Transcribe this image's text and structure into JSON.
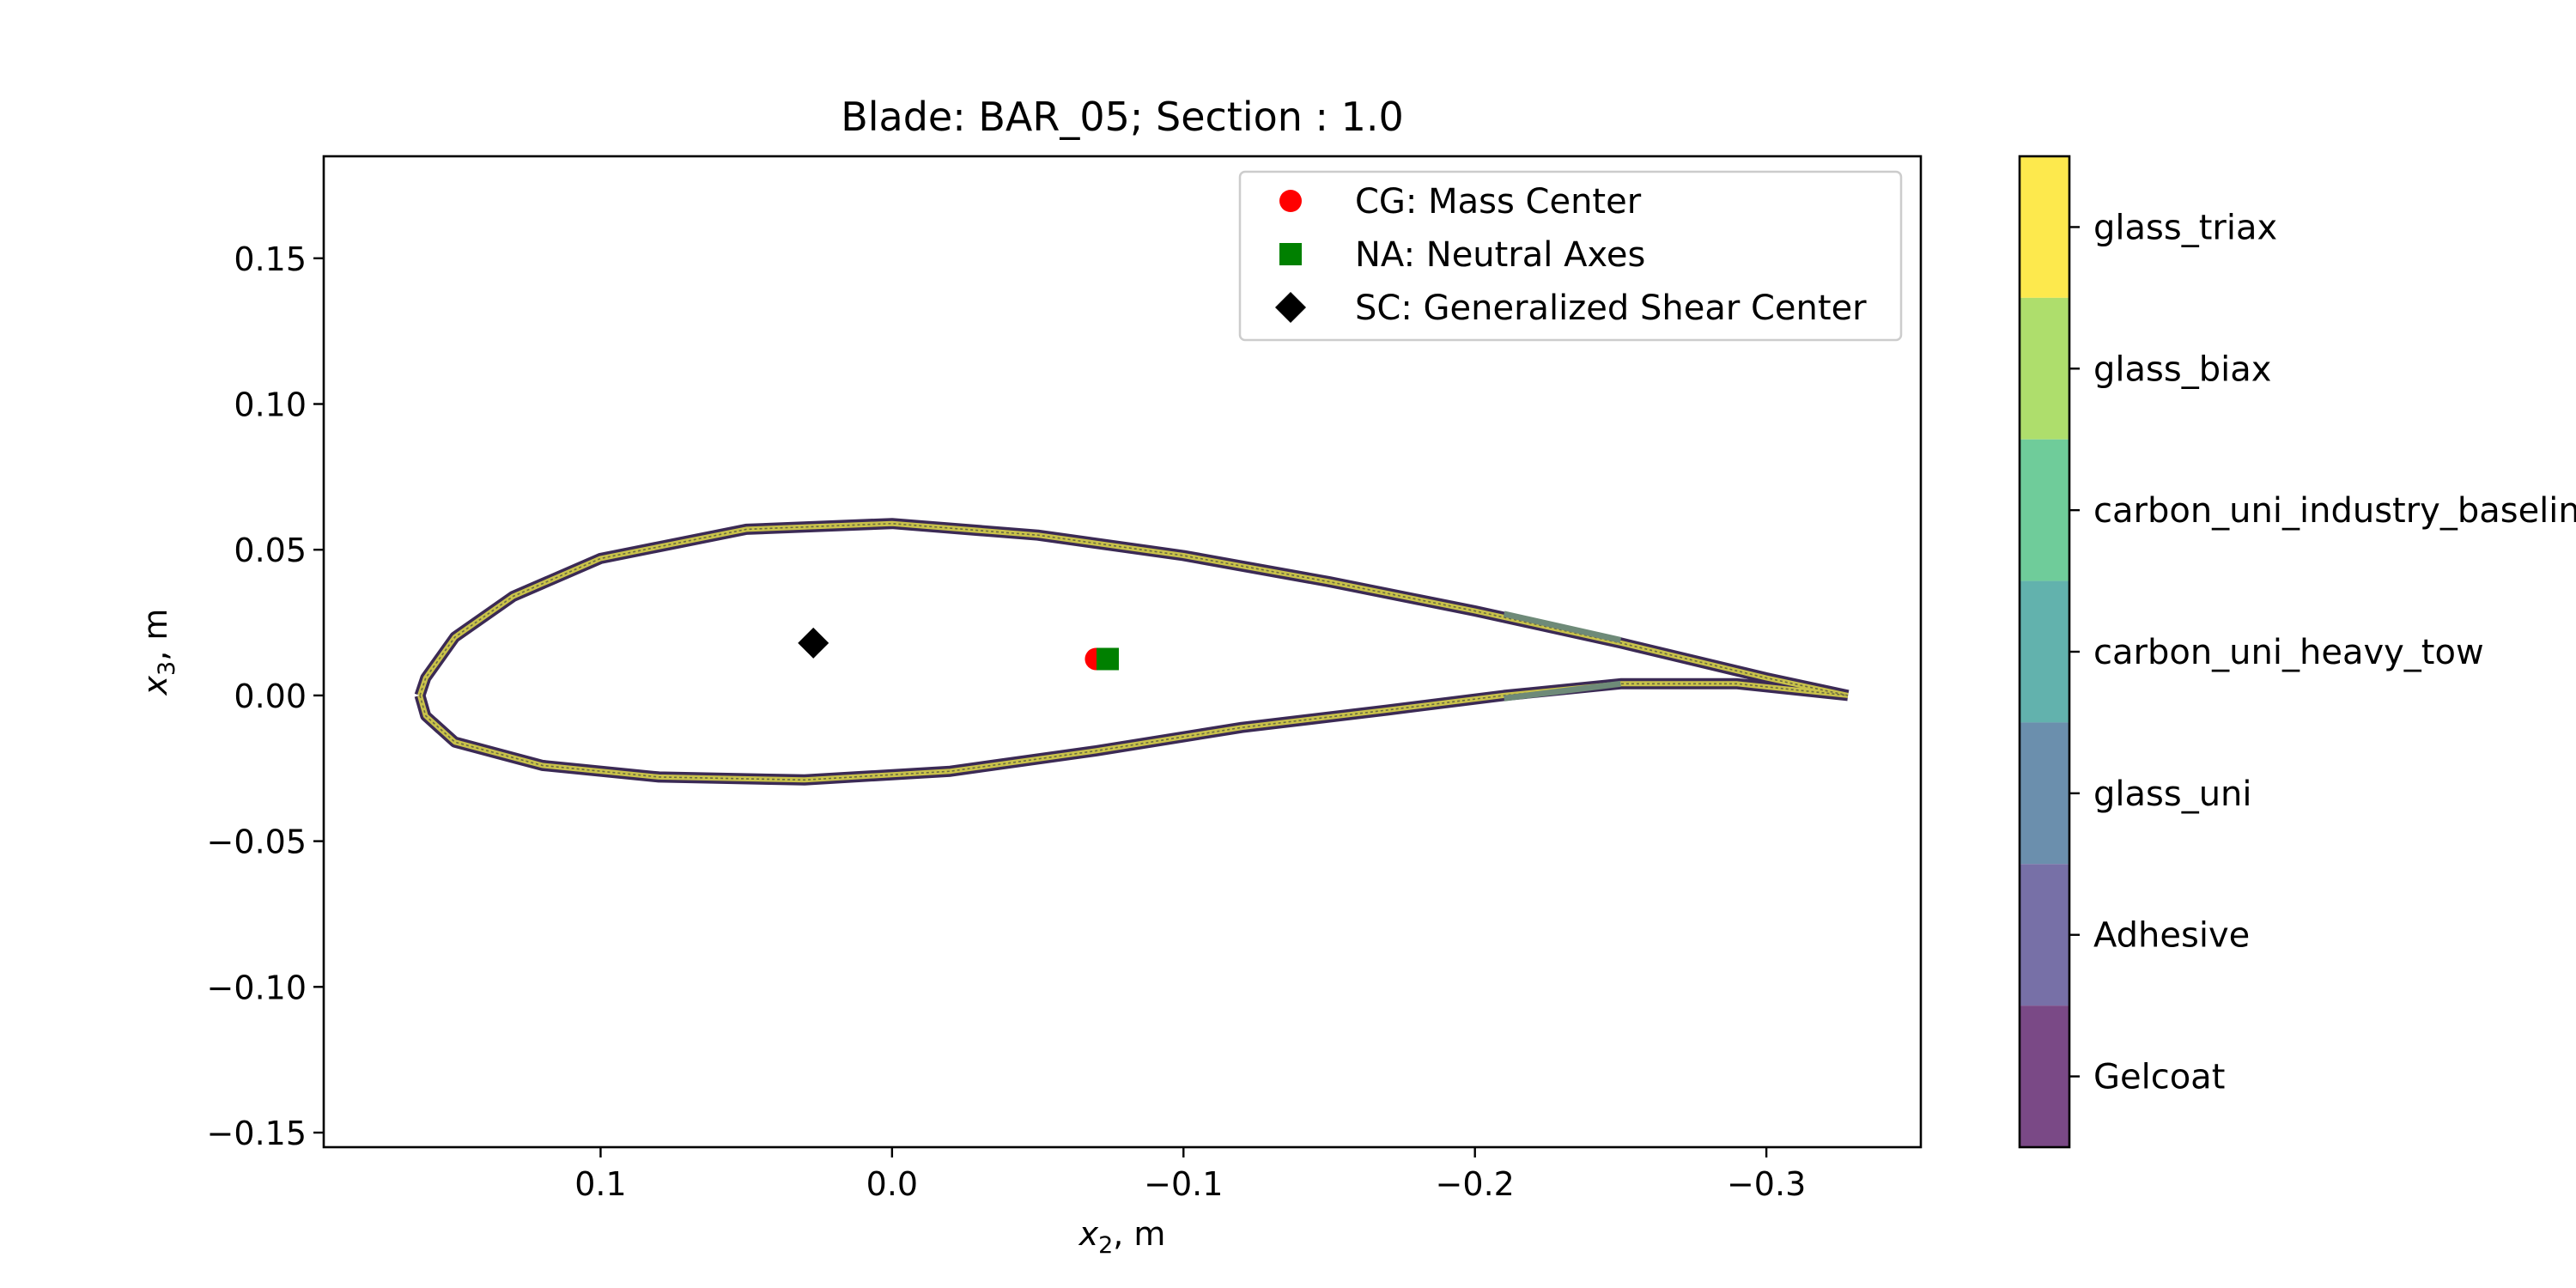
{
  "chart_data": {
    "type": "scatter",
    "title": "Blade: BAR_05; Section : 1.0",
    "xlabel": {
      "symbol": "x",
      "sub": "2",
      "unit": ", m"
    },
    "ylabel": {
      "symbol": "x",
      "sub": "3",
      "unit": ", m"
    },
    "xlim": [
      0.195,
      -0.353
    ],
    "ylim": [
      -0.155,
      0.185
    ],
    "x_ticks": [
      {
        "value": 0.1,
        "label": "0.1"
      },
      {
        "value": 0.0,
        "label": "0.0"
      },
      {
        "value": -0.1,
        "label": "−0.1"
      },
      {
        "value": -0.2,
        "label": "−0.2"
      },
      {
        "value": -0.3,
        "label": "−0.3"
      }
    ],
    "y_ticks": [
      {
        "value": 0.15,
        "label": "0.15"
      },
      {
        "value": 0.1,
        "label": "0.10"
      },
      {
        "value": 0.05,
        "label": "0.05"
      },
      {
        "value": 0.0,
        "label": "0.00"
      },
      {
        "value": -0.05,
        "label": "−0.05"
      },
      {
        "value": -0.1,
        "label": "−0.10"
      },
      {
        "value": -0.15,
        "label": "−0.15"
      }
    ],
    "points": [
      {
        "name": "CG: Mass Center",
        "marker": "circle",
        "color": "#ff0000",
        "x": -0.07,
        "y": 0.0125
      },
      {
        "name": "NA: Neutral Axes",
        "marker": "square",
        "color": "#008000",
        "x": -0.074,
        "y": 0.0125
      },
      {
        "name": "SC: Generalized Shear Center",
        "marker": "diamond",
        "color": "#000000",
        "x": 0.027,
        "y": 0.018
      }
    ],
    "legend_position": "top-right",
    "profile": {
      "upper_surface": [
        [
          -0.328,
          0.0
        ],
        [
          -0.3,
          0.006
        ],
        [
          -0.25,
          0.018
        ],
        [
          -0.2,
          0.029
        ],
        [
          -0.15,
          0.039
        ],
        [
          -0.1,
          0.048
        ],
        [
          -0.05,
          0.055
        ],
        [
          0.0,
          0.059
        ],
        [
          0.05,
          0.057
        ],
        [
          0.1,
          0.047
        ],
        [
          0.13,
          0.034
        ],
        [
          0.15,
          0.02
        ],
        [
          0.16,
          0.006
        ],
        [
          0.162,
          0.0
        ]
      ],
      "lower_surface": [
        [
          0.162,
          0.0
        ],
        [
          0.16,
          -0.007
        ],
        [
          0.15,
          -0.016
        ],
        [
          0.12,
          -0.024
        ],
        [
          0.08,
          -0.028
        ],
        [
          0.03,
          -0.029
        ],
        [
          -0.02,
          -0.026
        ],
        [
          -0.07,
          -0.019
        ],
        [
          -0.12,
          -0.011
        ],
        [
          -0.17,
          -0.005
        ],
        [
          -0.21,
          0.0
        ],
        [
          -0.25,
          0.004
        ],
        [
          -0.29,
          0.004
        ],
        [
          -0.328,
          0.0
        ]
      ],
      "spar_cap_upper": [
        [
          -0.21,
          0.028
        ],
        [
          -0.25,
          0.019
        ]
      ],
      "spar_cap_lower": [
        [
          -0.21,
          -0.001
        ],
        [
          -0.25,
          0.004
        ]
      ]
    },
    "colorbar": {
      "labels": [
        "glass_triax",
        "glass_biax",
        "carbon_uni_industry_baseline",
        "carbon_uni_heavy_tow",
        "glass_uni",
        "Adhesive",
        "Gelcoat"
      ],
      "colors": [
        "#fde94d",
        "#aede6c",
        "#6fcc9a",
        "#62b2ad",
        "#6b8fad",
        "#7770a7",
        "#7a4986"
      ]
    }
  }
}
